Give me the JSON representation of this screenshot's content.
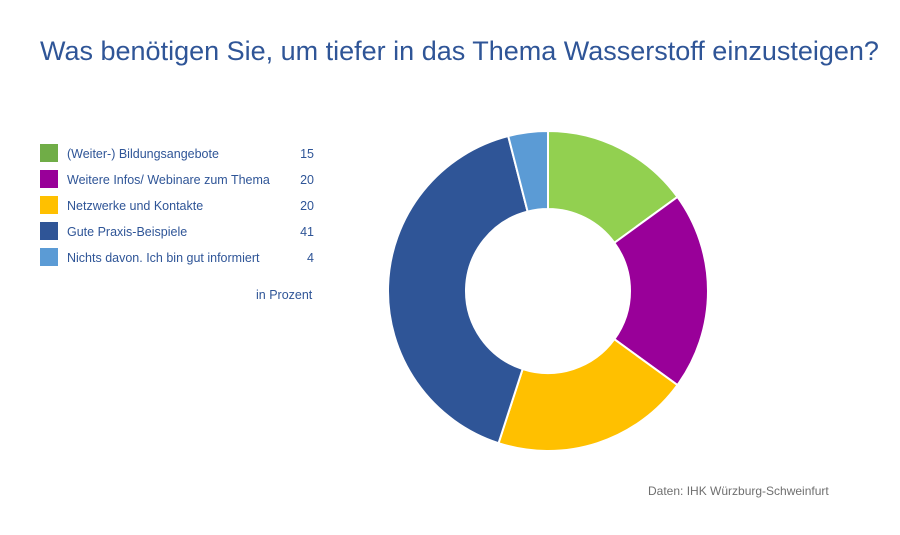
{
  "chart_data": {
    "type": "pie",
    "title": "Was benötigen Sie, um tiefer in das Thema Wasserstoff einzusteigen?",
    "unit_note": "in Prozent",
    "source": "Daten: IHK Würzburg-Schweinfurt",
    "legend_position": "left",
    "slices": [
      {
        "label": "(Weiter-) Bildungsangebote",
        "value": 15,
        "legend_color": "#70ad47",
        "color": "#92d050"
      },
      {
        "label": "Weitere Infos/ Webinare zum Thema",
        "value": 20,
        "legend_color": "#990099",
        "color": "#990099"
      },
      {
        "label": "Netzwerke und Kontakte",
        "value": 20,
        "legend_color": "#ffc000",
        "color": "#ffc000"
      },
      {
        "label": "Gute Praxis-Beispiele",
        "value": 41,
        "legend_color": "#2f5597",
        "color": "#2f5597"
      },
      {
        "label": "Nichts davon. Ich bin gut informiert",
        "value": 4,
        "legend_color": "#5b9bd5",
        "color": "#5b9bd5"
      }
    ]
  }
}
